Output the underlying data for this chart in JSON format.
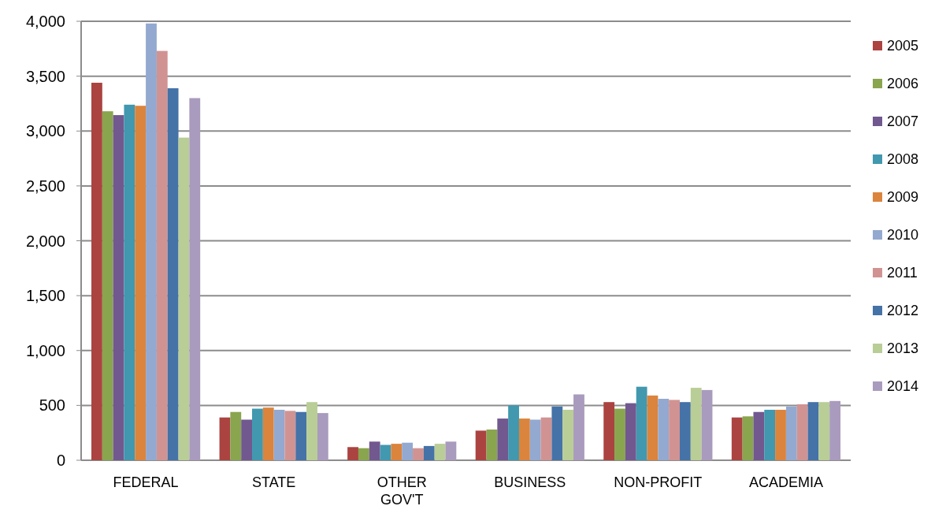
{
  "chart_data": {
    "type": "bar",
    "categories": [
      "FEDERAL",
      "STATE",
      "OTHER GOV'T",
      "BUSINESS",
      "NON-PROFIT",
      "ACADEMIA"
    ],
    "series": [
      {
        "name": "2005",
        "color": "#ab4341",
        "values": [
          3440,
          390,
          120,
          270,
          530,
          390
        ]
      },
      {
        "name": "2006",
        "color": "#89a54e",
        "values": [
          3180,
          440,
          110,
          280,
          470,
          400
        ]
      },
      {
        "name": "2007",
        "color": "#71588f",
        "values": [
          3145,
          370,
          170,
          380,
          520,
          440
        ]
      },
      {
        "name": "2008",
        "color": "#4198af",
        "values": [
          3240,
          470,
          140,
          500,
          670,
          460
        ]
      },
      {
        "name": "2009",
        "color": "#db843d",
        "values": [
          3230,
          480,
          150,
          380,
          590,
          460
        ]
      },
      {
        "name": "2010",
        "color": "#93a9cf",
        "values": [
          3980,
          460,
          160,
          370,
          560,
          490
        ]
      },
      {
        "name": "2011",
        "color": "#d19392",
        "values": [
          3730,
          450,
          110,
          390,
          550,
          510
        ]
      },
      {
        "name": "2012",
        "color": "#4572a7",
        "values": [
          3390,
          440,
          130,
          490,
          530,
          530
        ]
      },
      {
        "name": "2013",
        "color": "#b9cd96",
        "values": [
          2940,
          530,
          150,
          460,
          660,
          530
        ]
      },
      {
        "name": "2014",
        "color": "#a99bbd",
        "values": [
          3300,
          430,
          170,
          600,
          640,
          540
        ]
      }
    ],
    "ylim": [
      0,
      4000
    ],
    "yticks": [
      0,
      500,
      {
        "value": 1000,
        "label": "1,000"
      },
      {
        "value": 1500,
        "label": "1,500"
      },
      {
        "value": 2000,
        "label": "2,000"
      },
      {
        "value": 2500,
        "label": "2,500"
      },
      {
        "value": 3000,
        "label": "3,000"
      },
      {
        "value": 3500,
        "label": "3,500"
      },
      {
        "value": 4000,
        "label": "4,000"
      }
    ],
    "grid": "y",
    "legend": "right"
  }
}
